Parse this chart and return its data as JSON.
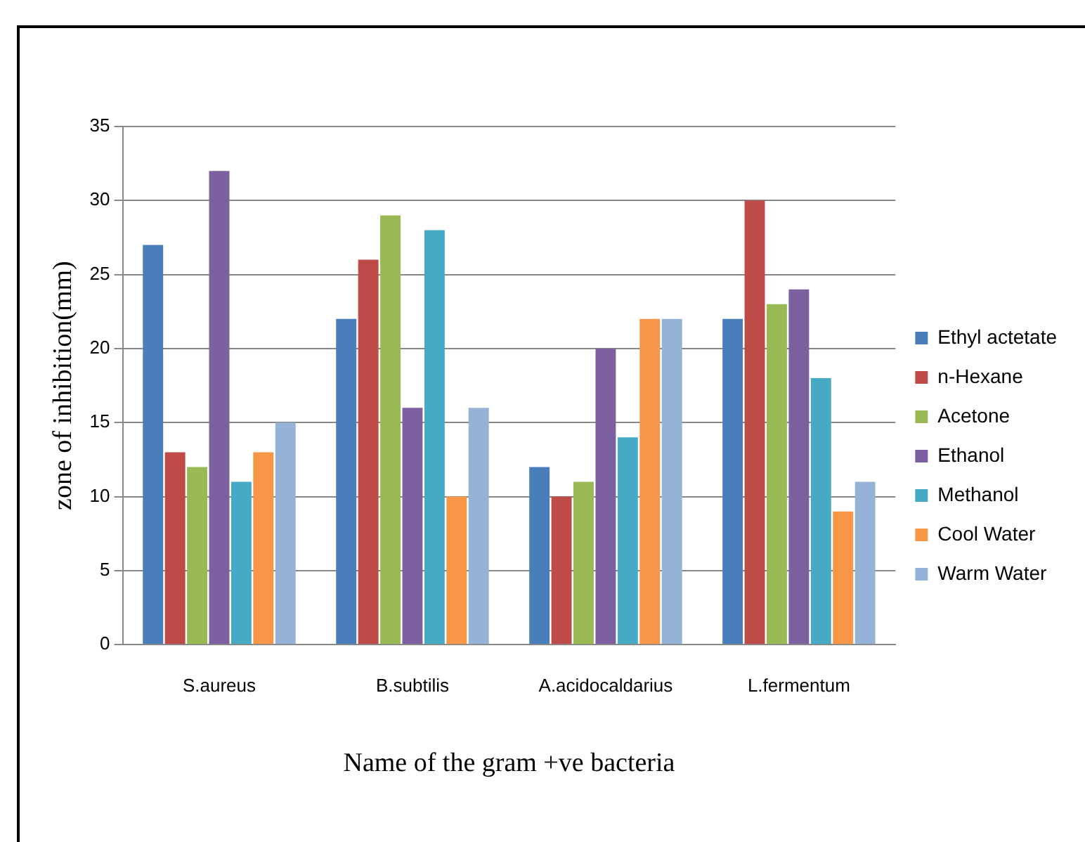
{
  "chart_data": {
    "type": "bar",
    "xlabel": "Name of the gram +ve bacteria",
    "ylabel": "zone of inhibition(mm)",
    "categories": [
      "S.aureus",
      "B.subtilis",
      "A.acidocaldarius",
      "L.fermentum"
    ],
    "series": [
      {
        "name": "Ethyl actetate",
        "color": "#4a7ebb",
        "values": [
          27,
          22,
          12,
          22
        ]
      },
      {
        "name": "n-Hexane",
        "color": "#be4b48",
        "values": [
          13,
          26,
          10,
          30
        ]
      },
      {
        "name": "Acetone",
        "color": "#98b954",
        "values": [
          12,
          29,
          11,
          23
        ]
      },
      {
        "name": "Ethanol",
        "color": "#7d60a0",
        "values": [
          32,
          16,
          20,
          24
        ]
      },
      {
        "name": "Methanol",
        "color": "#46aac5",
        "values": [
          11,
          28,
          14,
          18
        ]
      },
      {
        "name": "Cool Water",
        "color": "#f79646",
        "values": [
          13,
          10,
          22,
          9
        ]
      },
      {
        "name": "Warm Water",
        "color": "#95b3d7",
        "values": [
          15,
          16,
          22,
          11
        ]
      }
    ],
    "ylim": [
      0,
      35
    ],
    "yticks": [
      0,
      5,
      10,
      15,
      20,
      25,
      30,
      35
    ],
    "grid": "y",
    "legend": "right"
  }
}
